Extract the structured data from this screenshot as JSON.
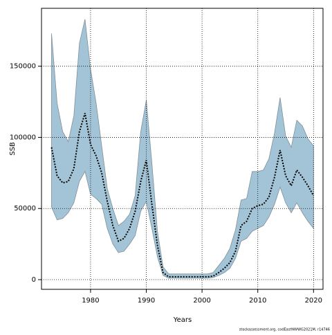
{
  "chart_data": {
    "type": "line",
    "x": [
      1973,
      1974,
      1975,
      1976,
      1977,
      1978,
      1979,
      1980,
      1981,
      1982,
      1983,
      1984,
      1985,
      1986,
      1987,
      1988,
      1989,
      1990,
      1991,
      1992,
      1993,
      1994,
      1995,
      1996,
      1997,
      1998,
      1999,
      2000,
      2001,
      2002,
      2003,
      2004,
      2005,
      2006,
      2007,
      2008,
      2009,
      2010,
      2011,
      2012,
      2013,
      2014,
      2015,
      2016,
      2017,
      2018,
      2019,
      2020
    ],
    "series": [
      {
        "color": "#000000",
        "values": [
          93000,
          73000,
          68000,
          69000,
          78000,
          104000,
          117000,
          95000,
          87000,
          75000,
          55000,
          38000,
          27000,
          29000,
          36000,
          48000,
          69000,
          84000,
          53000,
          24000,
          5000,
          2000,
          2000,
          2000,
          2000,
          2000,
          2000,
          2000,
          2000,
          2500,
          5000,
          8000,
          12000,
          20000,
          38000,
          41000,
          50000,
          52000,
          53000,
          58000,
          72000,
          91000,
          73000,
          66000,
          77000,
          72000,
          66000,
          59000
        ]
      }
    ],
    "band": {
      "color": "#a3c4d6",
      "lower": [
        51000,
        42000,
        43000,
        47000,
        54000,
        69000,
        76000,
        60000,
        57000,
        53000,
        36000,
        25000,
        19000,
        20000,
        25000,
        31000,
        48000,
        55000,
        36000,
        16000,
        3000,
        1000,
        1000,
        1000,
        1000,
        1000,
        1000,
        1000,
        1000,
        1500,
        3000,
        5000,
        8000,
        15000,
        27000,
        29000,
        34000,
        36000,
        38000,
        44000,
        53000,
        65000,
        54000,
        47000,
        54000,
        47000,
        41000,
        36000
      ],
      "upper": [
        173000,
        124000,
        104000,
        97000,
        115000,
        166000,
        183000,
        148000,
        124000,
        94000,
        64000,
        50000,
        38000,
        41000,
        46000,
        59000,
        104000,
        126000,
        82000,
        34000,
        9000,
        4000,
        4000,
        4000,
        4000,
        4000,
        4000,
        4000,
        4000,
        5000,
        10000,
        15000,
        22000,
        35000,
        56000,
        57000,
        76000,
        76000,
        77000,
        85000,
        103000,
        128000,
        101000,
        93000,
        112000,
        108000,
        99000,
        94000
      ]
    },
    "xlabel": "Years",
    "ylabel": "SSB",
    "xlim": [
      1971.2,
      2021.7
    ],
    "ylim": [
      -6800,
      190700
    ],
    "xticks": [
      1980,
      1990,
      2000,
      2010,
      2020
    ],
    "yticks": [
      0,
      50000,
      100000,
      150000
    ],
    "grid": true,
    "footnote": "stockassessment.org, codEastNWWG2021M, r14746"
  }
}
